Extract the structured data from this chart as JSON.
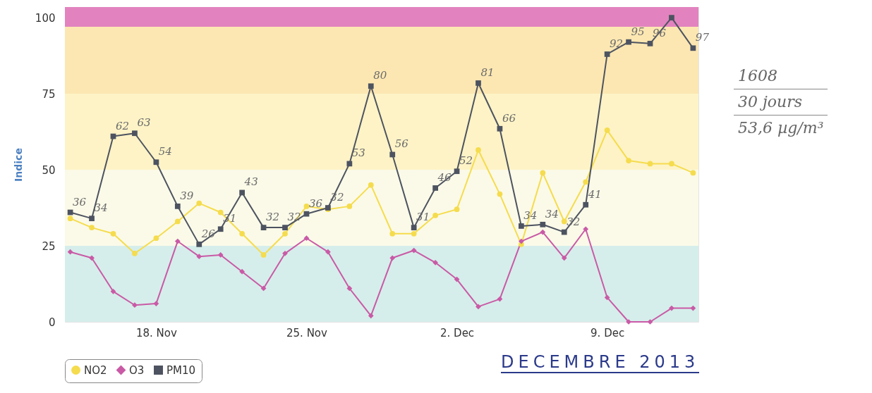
{
  "chart_data": {
    "type": "line",
    "ylabel": "Indice",
    "x": [
      "2013-11-14",
      "2013-11-15",
      "2013-11-16",
      "2013-11-17",
      "2013-11-18",
      "2013-11-19",
      "2013-11-20",
      "2013-11-21",
      "2013-11-22",
      "2013-11-23",
      "2013-11-24",
      "2013-11-25",
      "2013-11-26",
      "2013-11-27",
      "2013-11-28",
      "2013-11-29",
      "2013-11-30",
      "2013-12-01",
      "2013-12-02",
      "2013-12-03",
      "2013-12-04",
      "2013-12-05",
      "2013-12-06",
      "2013-12-07",
      "2013-12-08",
      "2013-12-09",
      "2013-12-10",
      "2013-12-11",
      "2013-12-12",
      "2013-12-13"
    ],
    "series": [
      {
        "name": "NO2",
        "color": "#f5dc4e",
        "marker": "circle",
        "values": [
          34,
          31,
          29,
          22.5,
          27.5,
          33,
          39,
          36,
          29,
          22,
          29,
          38,
          37,
          38,
          45,
          29,
          29,
          35,
          37,
          56.5,
          42,
          25.5,
          49,
          33,
          46,
          63,
          53,
          52,
          52,
          49
        ]
      },
      {
        "name": "O3",
        "color": "#c95aa6",
        "marker": "diamond",
        "values": [
          23,
          21,
          10,
          5.5,
          6,
          26.5,
          21.5,
          22,
          16.5,
          11,
          22.5,
          27.5,
          23,
          11,
          2,
          21,
          23.5,
          19.5,
          14,
          5,
          7.5,
          26.5,
          29.5,
          21,
          30.5,
          8,
          0,
          0,
          4.5,
          4.5
        ]
      },
      {
        "name": "PM10",
        "color": "#4d5360",
        "marker": "square",
        "values": [
          36,
          34,
          61,
          62,
          52.5,
          38,
          25.5,
          30.5,
          42.5,
          31,
          31,
          35.5,
          37.5,
          52,
          77.5,
          55,
          31,
          44,
          49.5,
          78.5,
          63.5,
          31.5,
          32,
          29.5,
          38.5,
          88,
          92,
          91.5,
          100,
          90
        ]
      }
    ],
    "xlim": [
      "2013-11-13T18:00",
      "2013-12-13T06:00"
    ],
    "xticks": [
      {
        "value": "2013-11-18",
        "label": "18. Nov"
      },
      {
        "value": "2013-11-25",
        "label": "25. Nov"
      },
      {
        "value": "2013-12-02",
        "label": "2. Dec"
      },
      {
        "value": "2013-12-09",
        "label": "9. Dec"
      }
    ],
    "ylim": [
      0,
      103.5
    ],
    "yticks": [
      0,
      25,
      50,
      75,
      100
    ],
    "bands": [
      {
        "axis": "y",
        "from": 0,
        "to": 25,
        "color": "#d6eeeb"
      },
      {
        "axis": "y",
        "from": 25,
        "to": 50,
        "color": "#fbfae8"
      },
      {
        "axis": "y",
        "from": 50,
        "to": 75,
        "color": "#fdf3c6"
      },
      {
        "axis": "y",
        "from": 75,
        "to": 97,
        "color": "#fce7b2"
      },
      {
        "axis": "y",
        "from": 97,
        "to": 103.5,
        "color": "#e283bf"
      }
    ],
    "legend": "bottom",
    "annotations": [
      {
        "text": "36",
        "x": "2013-11-14",
        "y": 36
      },
      {
        "text": "34",
        "x": "2013-11-15",
        "y": 34
      },
      {
        "text": "62",
        "x": "2013-11-16",
        "y": 61
      },
      {
        "text": "63",
        "x": "2013-11-17",
        "y": 62
      },
      {
        "text": "54",
        "x": "2013-11-18",
        "y": 52.5
      },
      {
        "text": "39",
        "x": "2013-11-19",
        "y": 38
      },
      {
        "text": "26",
        "x": "2013-11-20",
        "y": 25.5
      },
      {
        "text": "31",
        "x": "2013-11-21",
        "y": 30.5
      },
      {
        "text": "43",
        "x": "2013-11-22",
        "y": 42.5
      },
      {
        "text": "32",
        "x": "2013-11-23",
        "y": 31
      },
      {
        "text": "32",
        "x": "2013-11-24",
        "y": 31
      },
      {
        "text": "36",
        "x": "2013-11-25",
        "y": 35.5
      },
      {
        "text": "32",
        "x": "2013-11-26",
        "y": 37.5
      },
      {
        "text": "53",
        "x": "2013-11-27",
        "y": 52
      },
      {
        "text": "80",
        "x": "2013-11-28",
        "y": 77.5
      },
      {
        "text": "56",
        "x": "2013-11-29",
        "y": 55
      },
      {
        "text": "31",
        "x": "2013-11-30",
        "y": 31
      },
      {
        "text": "46",
        "x": "2013-12-01",
        "y": 44
      },
      {
        "text": "52",
        "x": "2013-12-02",
        "y": 49.5
      },
      {
        "text": "81",
        "x": "2013-12-03",
        "y": 78.5
      },
      {
        "text": "66",
        "x": "2013-12-04",
        "y": 63.5
      },
      {
        "text": "34",
        "x": "2013-12-05",
        "y": 31.5
      },
      {
        "text": "34",
        "x": "2013-12-06",
        "y": 32
      },
      {
        "text": "32",
        "x": "2013-12-07",
        "y": 29.5
      },
      {
        "text": "41",
        "x": "2013-12-08",
        "y": 38.5
      },
      {
        "text": "92",
        "x": "2013-12-09",
        "y": 88
      },
      {
        "text": "95",
        "x": "2013-12-10",
        "y": 92
      },
      {
        "text": "96",
        "x": "2013-12-11",
        "y": 91.5
      },
      {
        "text": "97",
        "x": "2013-12-13",
        "y": 90
      },
      "1608",
      "30 jours",
      "53,6 µg/m³",
      "DECEMBRE 2013"
    ]
  }
}
